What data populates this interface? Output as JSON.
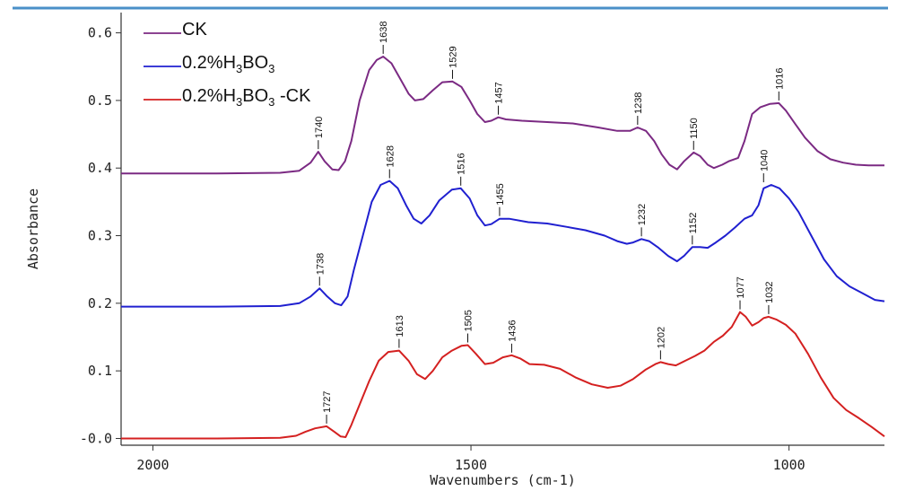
{
  "chart_data": {
    "type": "line",
    "title": "",
    "xlabel": "Wavenumbers (cm-1)",
    "ylabel": "Absorbance",
    "xlim": [
      2050,
      850
    ],
    "ylim": [
      -0.01,
      0.63
    ],
    "x_reversed": true,
    "x_ticks": [
      2000,
      1500,
      1000
    ],
    "y_ticks": [
      -0.0,
      0.1,
      0.2,
      0.3,
      0.4,
      0.5,
      0.6
    ],
    "y_tick_labels": [
      "-0.0",
      "0.1",
      "0.2",
      "0.3",
      "0.4",
      "0.5",
      "0.6"
    ],
    "grid": false,
    "legend_position": "top-left",
    "series": [
      {
        "name": "CK",
        "color": "#7b2a83",
        "points": [
          [
            2050,
            0.392
          ],
          [
            1900,
            0.392
          ],
          [
            1800,
            0.393
          ],
          [
            1770,
            0.396
          ],
          [
            1752,
            0.408
          ],
          [
            1740,
            0.424
          ],
          [
            1730,
            0.41
          ],
          [
            1718,
            0.398
          ],
          [
            1708,
            0.397
          ],
          [
            1698,
            0.41
          ],
          [
            1688,
            0.44
          ],
          [
            1675,
            0.5
          ],
          [
            1660,
            0.545
          ],
          [
            1648,
            0.56
          ],
          [
            1638,
            0.565
          ],
          [
            1625,
            0.555
          ],
          [
            1610,
            0.53
          ],
          [
            1598,
            0.51
          ],
          [
            1588,
            0.5
          ],
          [
            1575,
            0.502
          ],
          [
            1560,
            0.515
          ],
          [
            1545,
            0.527
          ],
          [
            1529,
            0.528
          ],
          [
            1515,
            0.52
          ],
          [
            1502,
            0.5
          ],
          [
            1490,
            0.48
          ],
          [
            1478,
            0.468
          ],
          [
            1468,
            0.47
          ],
          [
            1457,
            0.475
          ],
          [
            1445,
            0.472
          ],
          [
            1420,
            0.47
          ],
          [
            1380,
            0.468
          ],
          [
            1340,
            0.466
          ],
          [
            1300,
            0.46
          ],
          [
            1270,
            0.455
          ],
          [
            1250,
            0.455
          ],
          [
            1238,
            0.46
          ],
          [
            1225,
            0.455
          ],
          [
            1212,
            0.44
          ],
          [
            1200,
            0.42
          ],
          [
            1188,
            0.405
          ],
          [
            1176,
            0.398
          ],
          [
            1165,
            0.41
          ],
          [
            1150,
            0.423
          ],
          [
            1140,
            0.418
          ],
          [
            1128,
            0.405
          ],
          [
            1118,
            0.4
          ],
          [
            1105,
            0.405
          ],
          [
            1095,
            0.41
          ],
          [
            1080,
            0.415
          ],
          [
            1070,
            0.44
          ],
          [
            1058,
            0.48
          ],
          [
            1045,
            0.49
          ],
          [
            1030,
            0.495
          ],
          [
            1016,
            0.496
          ],
          [
            1005,
            0.485
          ],
          [
            990,
            0.465
          ],
          [
            975,
            0.445
          ],
          [
            955,
            0.425
          ],
          [
            935,
            0.413
          ],
          [
            915,
            0.408
          ],
          [
            895,
            0.405
          ],
          [
            875,
            0.404
          ],
          [
            850,
            0.404
          ]
        ]
      },
      {
        "name": "0.2%H3BO3",
        "color": "#2020d0",
        "points": [
          [
            2050,
            0.195
          ],
          [
            1900,
            0.195
          ],
          [
            1800,
            0.196
          ],
          [
            1770,
            0.2
          ],
          [
            1752,
            0.21
          ],
          [
            1738,
            0.222
          ],
          [
            1726,
            0.21
          ],
          [
            1714,
            0.2
          ],
          [
            1704,
            0.197
          ],
          [
            1694,
            0.21
          ],
          [
            1684,
            0.25
          ],
          [
            1670,
            0.3
          ],
          [
            1656,
            0.35
          ],
          [
            1642,
            0.375
          ],
          [
            1628,
            0.381
          ],
          [
            1615,
            0.37
          ],
          [
            1602,
            0.345
          ],
          [
            1590,
            0.325
          ],
          [
            1578,
            0.318
          ],
          [
            1565,
            0.33
          ],
          [
            1550,
            0.352
          ],
          [
            1530,
            0.368
          ],
          [
            1516,
            0.37
          ],
          [
            1502,
            0.355
          ],
          [
            1490,
            0.33
          ],
          [
            1478,
            0.315
          ],
          [
            1468,
            0.317
          ],
          [
            1455,
            0.325
          ],
          [
            1440,
            0.325
          ],
          [
            1410,
            0.32
          ],
          [
            1380,
            0.318
          ],
          [
            1350,
            0.313
          ],
          [
            1320,
            0.308
          ],
          [
            1290,
            0.3
          ],
          [
            1270,
            0.292
          ],
          [
            1255,
            0.288
          ],
          [
            1245,
            0.29
          ],
          [
            1232,
            0.295
          ],
          [
            1220,
            0.292
          ],
          [
            1205,
            0.282
          ],
          [
            1190,
            0.27
          ],
          [
            1176,
            0.262
          ],
          [
            1165,
            0.27
          ],
          [
            1152,
            0.283
          ],
          [
            1140,
            0.283
          ],
          [
            1128,
            0.282
          ],
          [
            1115,
            0.29
          ],
          [
            1100,
            0.3
          ],
          [
            1085,
            0.312
          ],
          [
            1070,
            0.325
          ],
          [
            1058,
            0.33
          ],
          [
            1048,
            0.345
          ],
          [
            1040,
            0.37
          ],
          [
            1028,
            0.375
          ],
          [
            1015,
            0.37
          ],
          [
            1000,
            0.355
          ],
          [
            985,
            0.335
          ],
          [
            965,
            0.3
          ],
          [
            945,
            0.265
          ],
          [
            925,
            0.24
          ],
          [
            905,
            0.225
          ],
          [
            885,
            0.215
          ],
          [
            865,
            0.205
          ],
          [
            850,
            0.203
          ]
        ]
      },
      {
        "name": "0.2%H3BO3 -CK",
        "color": "#d42020",
        "points": [
          [
            2050,
            0.0
          ],
          [
            1900,
            0.0
          ],
          [
            1800,
            0.001
          ],
          [
            1775,
            0.004
          ],
          [
            1760,
            0.01
          ],
          [
            1745,
            0.015
          ],
          [
            1727,
            0.018
          ],
          [
            1715,
            0.01
          ],
          [
            1705,
            0.003
          ],
          [
            1697,
            0.002
          ],
          [
            1688,
            0.02
          ],
          [
            1675,
            0.05
          ],
          [
            1660,
            0.085
          ],
          [
            1645,
            0.115
          ],
          [
            1630,
            0.128
          ],
          [
            1613,
            0.13
          ],
          [
            1598,
            0.115
          ],
          [
            1585,
            0.095
          ],
          [
            1572,
            0.088
          ],
          [
            1560,
            0.1
          ],
          [
            1545,
            0.12
          ],
          [
            1530,
            0.13
          ],
          [
            1515,
            0.137
          ],
          [
            1505,
            0.138
          ],
          [
            1492,
            0.125
          ],
          [
            1478,
            0.11
          ],
          [
            1465,
            0.112
          ],
          [
            1450,
            0.12
          ],
          [
            1436,
            0.123
          ],
          [
            1422,
            0.118
          ],
          [
            1408,
            0.11
          ],
          [
            1385,
            0.109
          ],
          [
            1360,
            0.103
          ],
          [
            1335,
            0.09
          ],
          [
            1310,
            0.08
          ],
          [
            1285,
            0.075
          ],
          [
            1265,
            0.078
          ],
          [
            1245,
            0.088
          ],
          [
            1225,
            0.102
          ],
          [
            1210,
            0.11
          ],
          [
            1202,
            0.113
          ],
          [
            1190,
            0.11
          ],
          [
            1178,
            0.108
          ],
          [
            1163,
            0.115
          ],
          [
            1148,
            0.122
          ],
          [
            1133,
            0.13
          ],
          [
            1118,
            0.143
          ],
          [
            1104,
            0.152
          ],
          [
            1090,
            0.165
          ],
          [
            1077,
            0.187
          ],
          [
            1068,
            0.18
          ],
          [
            1058,
            0.167
          ],
          [
            1048,
            0.172
          ],
          [
            1040,
            0.178
          ],
          [
            1032,
            0.18
          ],
          [
            1020,
            0.176
          ],
          [
            1005,
            0.168
          ],
          [
            990,
            0.155
          ],
          [
            970,
            0.125
          ],
          [
            950,
            0.09
          ],
          [
            930,
            0.06
          ],
          [
            910,
            0.042
          ],
          [
            890,
            0.03
          ],
          [
            870,
            0.017
          ],
          [
            850,
            0.003
          ]
        ]
      }
    ],
    "peaks": [
      {
        "series": 0,
        "x": 1740,
        "y": 0.424,
        "label": "1740"
      },
      {
        "series": 0,
        "x": 1638,
        "y": 0.565,
        "label": "1638"
      },
      {
        "series": 0,
        "x": 1529,
        "y": 0.528,
        "label": "1529"
      },
      {
        "series": 0,
        "x": 1457,
        "y": 0.475,
        "label": "1457"
      },
      {
        "series": 0,
        "x": 1238,
        "y": 0.46,
        "label": "1238"
      },
      {
        "series": 0,
        "x": 1150,
        "y": 0.423,
        "label": "1150"
      },
      {
        "series": 0,
        "x": 1016,
        "y": 0.496,
        "label": "1016"
      },
      {
        "series": 1,
        "x": 1738,
        "y": 0.222,
        "label": "1738"
      },
      {
        "series": 1,
        "x": 1628,
        "y": 0.381,
        "label": "1628"
      },
      {
        "series": 1,
        "x": 1516,
        "y": 0.37,
        "label": "1516"
      },
      {
        "series": 1,
        "x": 1455,
        "y": 0.325,
        "label": "1455"
      },
      {
        "series": 1,
        "x": 1232,
        "y": 0.295,
        "label": "1232"
      },
      {
        "series": 1,
        "x": 1152,
        "y": 0.283,
        "label": "1152"
      },
      {
        "series": 1,
        "x": 1040,
        "y": 0.375,
        "label": "1040"
      },
      {
        "series": 2,
        "x": 1727,
        "y": 0.018,
        "label": "1727"
      },
      {
        "series": 2,
        "x": 1613,
        "y": 0.13,
        "label": "1613"
      },
      {
        "series": 2,
        "x": 1505,
        "y": 0.138,
        "label": "1505"
      },
      {
        "series": 2,
        "x": 1436,
        "y": 0.123,
        "label": "1436"
      },
      {
        "series": 2,
        "x": 1202,
        "y": 0.113,
        "label": "1202"
      },
      {
        "series": 2,
        "x": 1077,
        "y": 0.187,
        "label": "1077"
      },
      {
        "series": 2,
        "x": 1032,
        "y": 0.18,
        "label": "1032"
      }
    ],
    "legend": [
      {
        "series": 0,
        "parts": [
          {
            "t": "CK"
          }
        ]
      },
      {
        "series": 1,
        "parts": [
          {
            "t": "0.2%H"
          },
          {
            "t": "3",
            "sub": true
          },
          {
            "t": "BO"
          },
          {
            "t": "3",
            "sub": true
          }
        ]
      },
      {
        "series": 2,
        "parts": [
          {
            "t": "0.2%H"
          },
          {
            "t": "3",
            "sub": true
          },
          {
            "t": "BO"
          },
          {
            "t": "3",
            "sub": true
          },
          {
            "t": " -CK"
          }
        ]
      }
    ]
  }
}
